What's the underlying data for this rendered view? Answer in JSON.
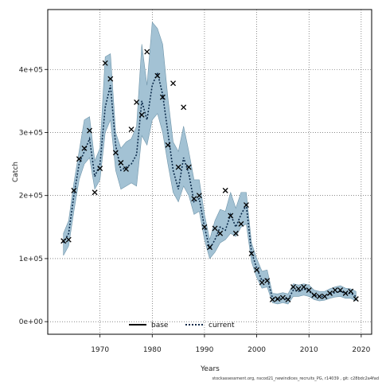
{
  "chart_data": {
    "type": "line",
    "xlabel": "Years",
    "ylabel": "Catch",
    "xlim": [
      1960,
      2022
    ],
    "ylim": [
      -20000,
      495000
    ],
    "x_ticks": [
      1970,
      1980,
      1990,
      2000,
      2010,
      2020
    ],
    "y_ticks": [
      0,
      100000,
      200000,
      300000,
      400000
    ],
    "y_tick_labels": [
      "0e+00",
      "1e+05",
      "2e+05",
      "3e+05",
      "4e+05"
    ],
    "grid": true,
    "legend_placement": "bottom-center",
    "footer": "stockassessment.org, nscod21_newindices_recruits_PG, r14039 , git: c28bdc2a4fad",
    "colors": {
      "band_fill": "#a3c2d4",
      "band_stroke": "#6f95aa",
      "current_line": "#0b2a4a",
      "base_line": "#000000",
      "observed_marker": "#000000"
    },
    "series": [
      {
        "name": "base",
        "style": "solid",
        "x": [],
        "y": []
      },
      {
        "name": "current",
        "style": "dotted",
        "x": [
          1963,
          1964,
          1965,
          1966,
          1967,
          1968,
          1969,
          1970,
          1971,
          1972,
          1973,
          1974,
          1975,
          1976,
          1977,
          1978,
          1979,
          1980,
          1981,
          1982,
          1983,
          1984,
          1985,
          1986,
          1987,
          1988,
          1989,
          1990,
          1991,
          1992,
          1993,
          1994,
          1995,
          1996,
          1997,
          1998,
          1999,
          2000,
          2001,
          2002,
          2003,
          2004,
          2005,
          2006,
          2007,
          2008,
          2009,
          2010,
          2011,
          2012,
          2013,
          2014,
          2015,
          2016,
          2017,
          2018,
          2019
        ],
        "y": [
          125000,
          140000,
          200000,
          250000,
          270000,
          290000,
          230000,
          250000,
          340000,
          375000,
          280000,
          240000,
          245000,
          250000,
          265000,
          350000,
          320000,
          375000,
          395000,
          360000,
          300000,
          240000,
          210000,
          260000,
          235000,
          190000,
          195000,
          150000,
          115000,
          130000,
          150000,
          145000,
          170000,
          150000,
          170000,
          185000,
          110000,
          85000,
          65000,
          68000,
          38000,
          35000,
          38000,
          35000,
          50000,
          48000,
          52000,
          48000,
          42000,
          40000,
          40000,
          44000,
          46000,
          48000,
          45000,
          45000,
          40000
        ],
        "lower": [
          105000,
          120000,
          175000,
          225000,
          250000,
          260000,
          210000,
          225000,
          300000,
          320000,
          240000,
          210000,
          215000,
          220000,
          215000,
          295000,
          280000,
          320000,
          330000,
          300000,
          250000,
          205000,
          190000,
          215000,
          200000,
          170000,
          175000,
          130000,
          100000,
          110000,
          125000,
          130000,
          140000,
          135000,
          150000,
          155000,
          95000,
          70000,
          53000,
          55000,
          30000,
          28000,
          30000,
          28000,
          40000,
          40000,
          42000,
          40000,
          35000,
          33000,
          34000,
          37000,
          39000,
          40000,
          37000,
          37000,
          33000
        ],
        "upper": [
          140000,
          160000,
          220000,
          270000,
          320000,
          325000,
          255000,
          275000,
          420000,
          425000,
          300000,
          275000,
          285000,
          290000,
          310000,
          440000,
          375000,
          475000,
          465000,
          440000,
          355000,
          285000,
          270000,
          310000,
          270000,
          225000,
          225000,
          170000,
          130000,
          160000,
          178000,
          175000,
          205000,
          180000,
          205000,
          205000,
          125000,
          100000,
          80000,
          82000,
          45000,
          44000,
          46000,
          44000,
          60000,
          58000,
          60000,
          58000,
          50000,
          48000,
          48000,
          52000,
          55000,
          57000,
          53000,
          52000,
          48000
        ]
      }
    ],
    "observed": {
      "marker": "x",
      "x": [
        1963,
        1964,
        1965,
        1966,
        1967,
        1968,
        1969,
        1970,
        1971,
        1972,
        1973,
        1974,
        1975,
        1976,
        1977,
        1978,
        1979,
        1981,
        1982,
        1983,
        1984,
        1985,
        1986,
        1987,
        1988,
        1989,
        1990,
        1991,
        1992,
        1993,
        1994,
        1995,
        1996,
        1997,
        1998,
        1999,
        2000,
        2001,
        2002,
        2003,
        2004,
        2005,
        2006,
        2007,
        2008,
        2009,
        2010,
        2011,
        2012,
        2013,
        2014,
        2015,
        2016,
        2017,
        2018,
        2019
      ],
      "y": [
        128000,
        130000,
        208000,
        258000,
        275000,
        303000,
        205000,
        243000,
        410000,
        385000,
        268000,
        252000,
        242000,
        305000,
        348000,
        328000,
        428000,
        390000,
        356000,
        280000,
        378000,
        245000,
        340000,
        245000,
        195000,
        200000,
        150000,
        118000,
        148000,
        140000,
        208000,
        168000,
        140000,
        155000,
        185000,
        108000,
        82000,
        62000,
        65000,
        35000,
        36000,
        38000,
        35000,
        55000,
        52000,
        55000,
        50000,
        42000,
        40000,
        40000,
        45000,
        50000,
        50000,
        45000,
        48000,
        36000
      ]
    }
  }
}
